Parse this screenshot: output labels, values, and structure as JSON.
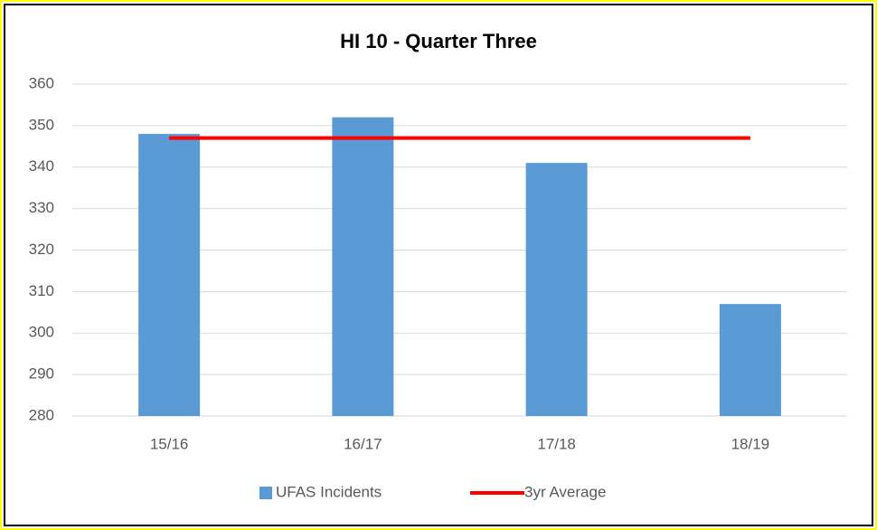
{
  "chart_data": {
    "type": "bar",
    "title": "HI 10 - Quarter Three",
    "categories": [
      "15/16",
      "16/17",
      "17/18",
      "18/19"
    ],
    "series": [
      {
        "name": "UFAS Incidents",
        "type": "bar",
        "color": "#5b9bd5",
        "values": [
          348,
          352,
          341,
          307
        ]
      },
      {
        "name": "3yr Average",
        "type": "line",
        "color": "#ff0000",
        "values": [
          347,
          347,
          347,
          347
        ]
      }
    ],
    "ylim": [
      280,
      360
    ],
    "yticks": [
      280,
      290,
      300,
      310,
      320,
      330,
      340,
      350,
      360
    ],
    "grid": true,
    "legend": "bottom"
  }
}
